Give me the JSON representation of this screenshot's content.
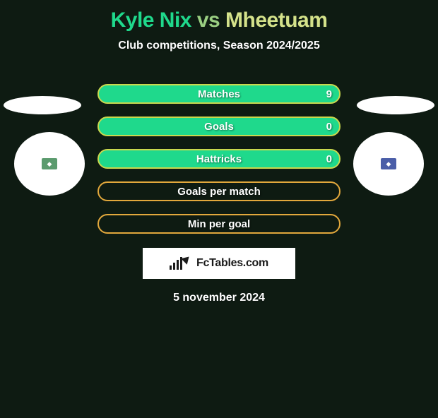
{
  "title": {
    "player1": "Kyle Nix",
    "vs": "vs",
    "player2": "Mheetuam",
    "player1_color": "#1fd98c",
    "vs_color": "#9acf82",
    "player2_color": "#d4e28a"
  },
  "subtitle": "Club competitions, Season 2024/2025",
  "stats": [
    {
      "label": "Matches",
      "value_right": "9",
      "fill": "#1fd98c",
      "border": "#c9d84e"
    },
    {
      "label": "Goals",
      "value_right": "0",
      "fill": "#1fd98c",
      "border": "#c9d84e"
    },
    {
      "label": "Hattricks",
      "value_right": "0",
      "fill": "#1fd98c",
      "border": "#c9d84e"
    },
    {
      "label": "Goals per match",
      "value_right": "",
      "fill": "#e2a83c",
      "border": "#e2a83c",
      "fill_opacity": 0
    },
    {
      "label": "Min per goal",
      "value_right": "",
      "fill": "#e2a83c",
      "border": "#e2a83c",
      "fill_opacity": 0
    }
  ],
  "badges": {
    "left_card_color": "#5b9b6e",
    "right_card_color": "#4a5ea8",
    "left_icon": "◆",
    "right_icon": "◆"
  },
  "logo_text": "FcTables.com",
  "date": "5 november 2024",
  "colors": {
    "page_bg": "#0e1b12",
    "text": "#ffffff"
  }
}
